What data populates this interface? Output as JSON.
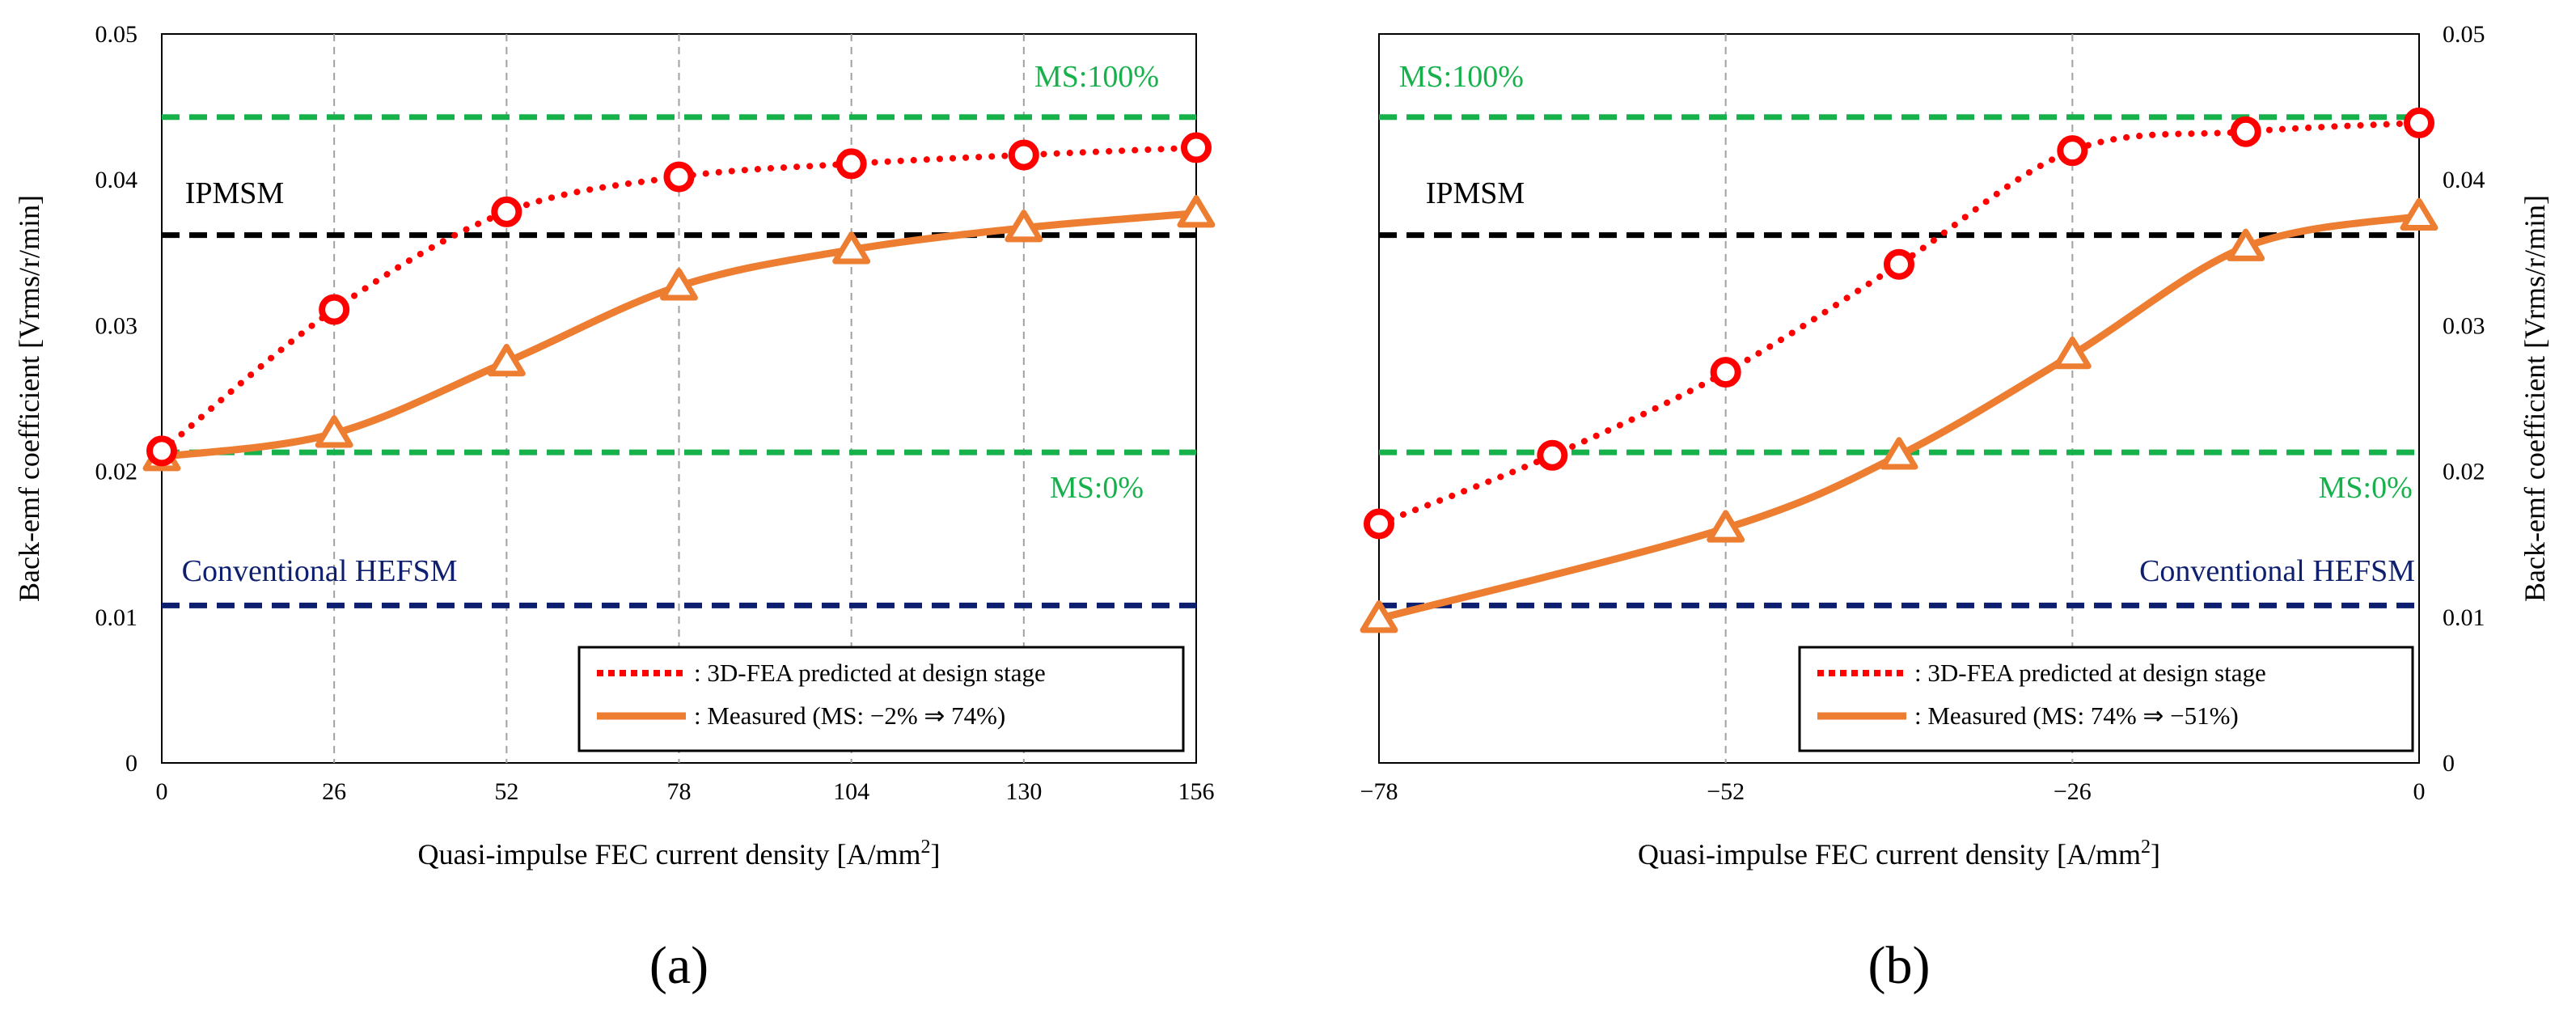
{
  "colors": {
    "predicted": "#ff0000",
    "measured": "#ed7d31",
    "ms_line": "#16b14b",
    "ipmsm": "#000000",
    "hefsm": "#0d1f6e",
    "grid": "#a0a0a0"
  },
  "chart_data": [
    {
      "type": "line",
      "panel_label": "(a)",
      "xlabel_main": "Quasi-impulse FEC current density [A/mm",
      "xlabel_sup": "2",
      "xlabel_end": "]",
      "ylabel": "Back-emf coefficient [Vrms/r/min]",
      "y_axis_side": "left",
      "xlim": [
        0,
        156
      ],
      "ylim": [
        0,
        0.05
      ],
      "x_ticks": [
        0,
        26,
        52,
        78,
        104,
        130,
        156
      ],
      "x_tick_labels": [
        "0",
        "26",
        "52",
        "78",
        "104",
        "130",
        "156"
      ],
      "y_ticks": [
        0,
        0.01,
        0.02,
        0.03,
        0.04,
        0.05
      ],
      "y_tick_labels": [
        "0",
        "0.01",
        "0.02",
        "0.03",
        "0.04",
        "0.05"
      ],
      "grid": "vertical dashed",
      "reference_lines": [
        {
          "label": "MS:100%",
          "y": 0.0443,
          "color_key": "ms_line",
          "label_x": 141,
          "label_y": 0.0464,
          "anchor": "middle"
        },
        {
          "label": "IPMSM",
          "y": 0.0362,
          "color_key": "ipmsm",
          "label_x": 3.5,
          "label_y": 0.0384,
          "anchor": "start"
        },
        {
          "label": "MS:0%",
          "y": 0.0213,
          "color_key": "ms_line",
          "label_x": 141,
          "label_y": 0.0182,
          "anchor": "middle"
        },
        {
          "label": "Conventional HEFSM",
          "y": 0.0108,
          "color_key": "hefsm",
          "label_x": 3,
          "label_y": 0.0125,
          "anchor": "start"
        }
      ],
      "series": [
        {
          "name": "3D-FEA predicted at design stage",
          "legend_prefix": ": ",
          "style": "dotted",
          "marker": "circle",
          "color_key": "predicted",
          "x": [
            0,
            26,
            52,
            78,
            104,
            130,
            156
          ],
          "y": [
            0.0214,
            0.0311,
            0.0378,
            0.0402,
            0.0411,
            0.0417,
            0.0422
          ]
        },
        {
          "name": "Measured (MS: −2% ⇒ 74%)",
          "legend_prefix": ": ",
          "style": "solid",
          "marker": "triangle",
          "color_key": "measured",
          "x": [
            0,
            26,
            52,
            78,
            104,
            130,
            156
          ],
          "y": [
            0.021,
            0.0226,
            0.0275,
            0.0327,
            0.0352,
            0.0367,
            0.0377
          ]
        }
      ],
      "legend": "bottom-right"
    },
    {
      "type": "line",
      "panel_label": "(b)",
      "xlabel_main": "Quasi-impulse FEC current density [A/mm",
      "xlabel_sup": "2",
      "xlabel_end": "]",
      "ylabel": "Back-emf coefficient [Vrms/r/min]",
      "y_axis_side": "right",
      "xlim": [
        -78,
        0
      ],
      "ylim": [
        0,
        0.05
      ],
      "x_ticks": [
        -78,
        -52,
        -26,
        0
      ],
      "x_tick_labels": [
        "−78",
        "−52",
        "−26",
        "0"
      ],
      "grid_x": [
        -52,
        -26
      ],
      "y_ticks": [
        0,
        0.01,
        0.02,
        0.03,
        0.04,
        0.05
      ],
      "y_tick_labels": [
        "0",
        "0.01",
        "0.02",
        "0.03",
        "0.04",
        "0.05"
      ],
      "grid": "vertical dashed",
      "reference_lines": [
        {
          "label": "MS:100%",
          "y": 0.0443,
          "color_key": "ms_line",
          "label_x": -76.5,
          "label_y": 0.0464,
          "anchor": "start"
        },
        {
          "label": "IPMSM",
          "y": 0.0362,
          "color_key": "ipmsm",
          "label_x": -74.5,
          "label_y": 0.0384,
          "anchor": "start"
        },
        {
          "label": "MS:0%",
          "y": 0.0213,
          "color_key": "ms_line",
          "label_x": -0.5,
          "label_y": 0.0182,
          "anchor": "end"
        },
        {
          "label": "Conventional HEFSM",
          "y": 0.0108,
          "color_key": "hefsm",
          "label_x": -0.3,
          "label_y": 0.0125,
          "anchor": "end"
        }
      ],
      "series": [
        {
          "name": "3D-FEA predicted at design stage",
          "legend_prefix": ": ",
          "style": "dotted",
          "marker": "circle",
          "color_key": "predicted",
          "x": [
            -78,
            -65,
            -52,
            -39,
            -26,
            -13,
            0
          ],
          "y": [
            0.0164,
            0.0211,
            0.0268,
            0.0342,
            0.042,
            0.0433,
            0.0439
          ]
        },
        {
          "name": "Measured (MS: 74% ⇒ −51%)",
          "legend_prefix": ": ",
          "style": "solid",
          "marker": "triangle",
          "color_key": "measured",
          "x": [
            -78,
            -52,
            -39,
            -26,
            -13,
            0
          ],
          "y": [
            0.0099,
            0.0161,
            0.0211,
            0.028,
            0.0354,
            0.0375
          ]
        }
      ],
      "legend": "bottom-right"
    }
  ]
}
